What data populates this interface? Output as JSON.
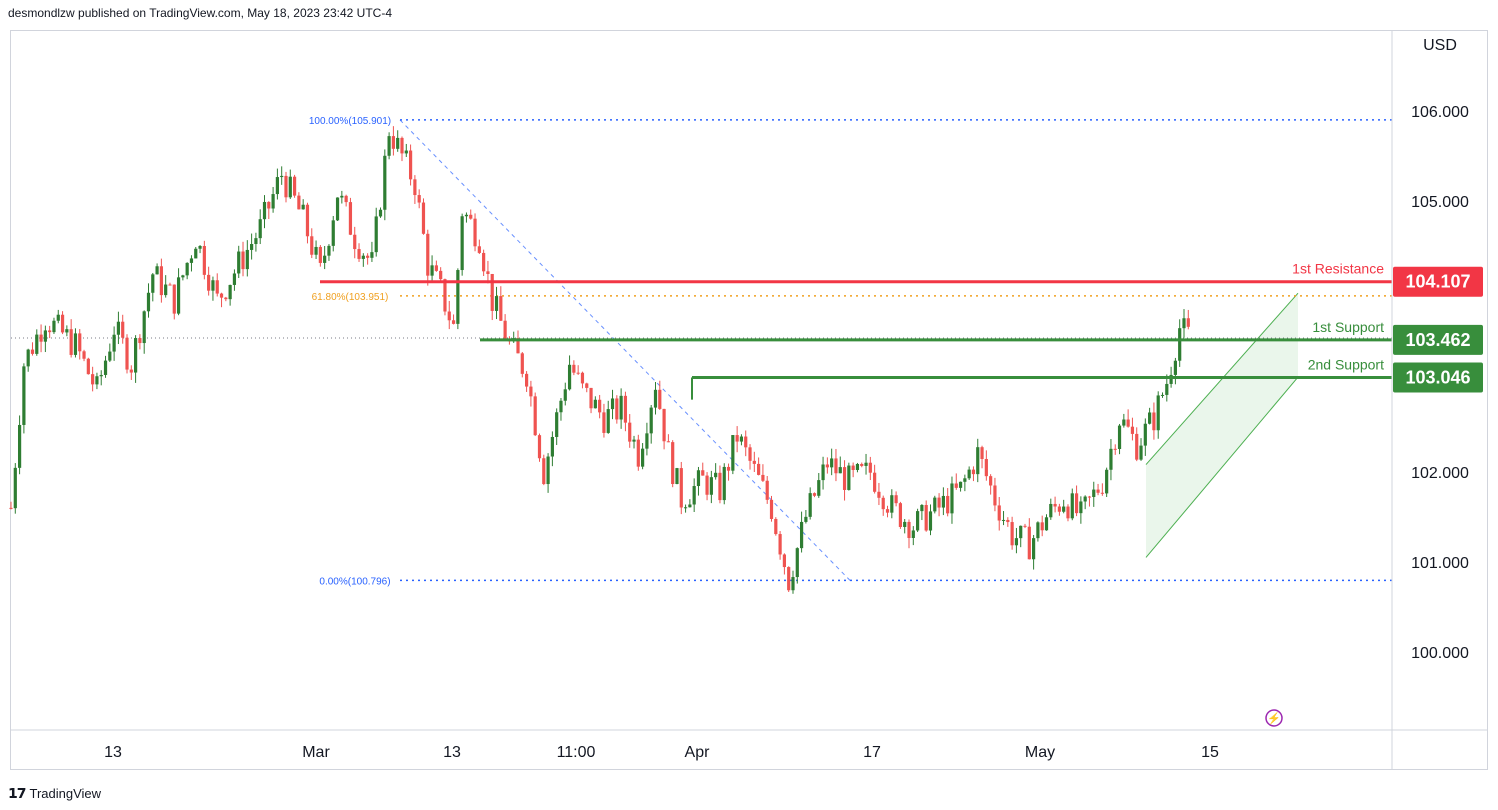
{
  "header": {
    "text": "desmondlzw published on TradingView.com, May 18, 2023 23:42 UTC-4"
  },
  "footer": {
    "logo_icon": "tradingview-logo-icon",
    "brand": "TradingView"
  },
  "colors": {
    "up": "#26a69a",
    "upBody": "#2e7d32",
    "down": "#ef5350",
    "resistance": "#f23645",
    "support": "#388e3c",
    "fib": "#2962ff",
    "fib618": "#f0a020",
    "channel": "#4caf50",
    "channelFill": "#e8f5e9",
    "flash": "#9c27b0"
  },
  "chart_data": {
    "type": "candlestick",
    "currency_label": "USD",
    "y_ticks": [
      "106.000",
      "105.000",
      "102.000",
      "101.000",
      "100.000"
    ],
    "y_tick_values": [
      106,
      105,
      102,
      101,
      100
    ],
    "ylim": [
      99.25,
      106.8
    ],
    "x_ticks": [
      "13",
      "Mar",
      "13",
      "11:00",
      "Apr",
      "17",
      "May",
      "15"
    ],
    "levels": [
      {
        "name": "1st Resistance",
        "value": 104.107,
        "label": "104.107",
        "kind": "resistance"
      },
      {
        "name": "1st Support",
        "value": 103.462,
        "label": "103.462",
        "kind": "support"
      },
      {
        "name": "2nd Support",
        "value": 103.046,
        "label": "103.046",
        "kind": "support"
      }
    ],
    "fib_labels": [
      {
        "text": "100.00%(105.901)",
        "value": 105.901
      },
      {
        "text": "61.80%(103.951)",
        "value": 103.951
      },
      {
        "text": "0.00%(100.796)",
        "value": 100.796
      }
    ],
    "close_points": [
      [
        0,
        101.6
      ],
      [
        3,
        103.2
      ],
      [
        8,
        103.7
      ],
      [
        15,
        103.4
      ],
      [
        20,
        102.9
      ],
      [
        24,
        103.6
      ],
      [
        28,
        103.2
      ],
      [
        33,
        104.2
      ],
      [
        38,
        103.9
      ],
      [
        43,
        104.6
      ],
      [
        48,
        103.9
      ],
      [
        53,
        104.3
      ],
      [
        58,
        104.7
      ],
      [
        63,
        105.3
      ],
      [
        68,
        104.8
      ],
      [
        72,
        104.2
      ],
      [
        76,
        105.1
      ],
      [
        80,
        104.6
      ],
      [
        84,
        104.3
      ],
      [
        88,
        105.8
      ],
      [
        90,
        105.6
      ],
      [
        94,
        105.2
      ],
      [
        97,
        104.3
      ],
      [
        100,
        104.0
      ],
      [
        103,
        103.6
      ],
      [
        105,
        104.9
      ],
      [
        109,
        104.6
      ],
      [
        112,
        103.9
      ],
      [
        116,
        103.4
      ],
      [
        120,
        103.1
      ],
      [
        124,
        102.0
      ],
      [
        127,
        102.6
      ],
      [
        130,
        103.2
      ],
      [
        133,
        102.9
      ],
      [
        138,
        102.6
      ],
      [
        142,
        102.7
      ],
      [
        146,
        102.2
      ],
      [
        150,
        103.0
      ],
      [
        153,
        102.2
      ],
      [
        156,
        101.7
      ],
      [
        161,
        101.9
      ],
      [
        165,
        101.8
      ],
      [
        169,
        102.4
      ],
      [
        173,
        102.0
      ],
      [
        177,
        101.6
      ],
      [
        181,
        100.8
      ],
      [
        185,
        101.5
      ],
      [
        190,
        102.1
      ],
      [
        195,
        101.9
      ],
      [
        200,
        102.0
      ],
      [
        205,
        101.6
      ],
      [
        210,
        101.4
      ],
      [
        216,
        101.6
      ],
      [
        221,
        101.8
      ],
      [
        225,
        102.2
      ],
      [
        229,
        101.7
      ],
      [
        233,
        101.3
      ],
      [
        237,
        101.2
      ],
      [
        241,
        101.5
      ],
      [
        245,
        101.7
      ],
      [
        249,
        101.5
      ],
      [
        254,
        101.9
      ],
      [
        258,
        102.6
      ],
      [
        262,
        102.3
      ],
      [
        266,
        102.6
      ],
      [
        269,
        103.0
      ],
      [
        272,
        103.6
      ],
      [
        274,
        103.5
      ]
    ],
    "x_range": [
      0,
      300
    ]
  }
}
